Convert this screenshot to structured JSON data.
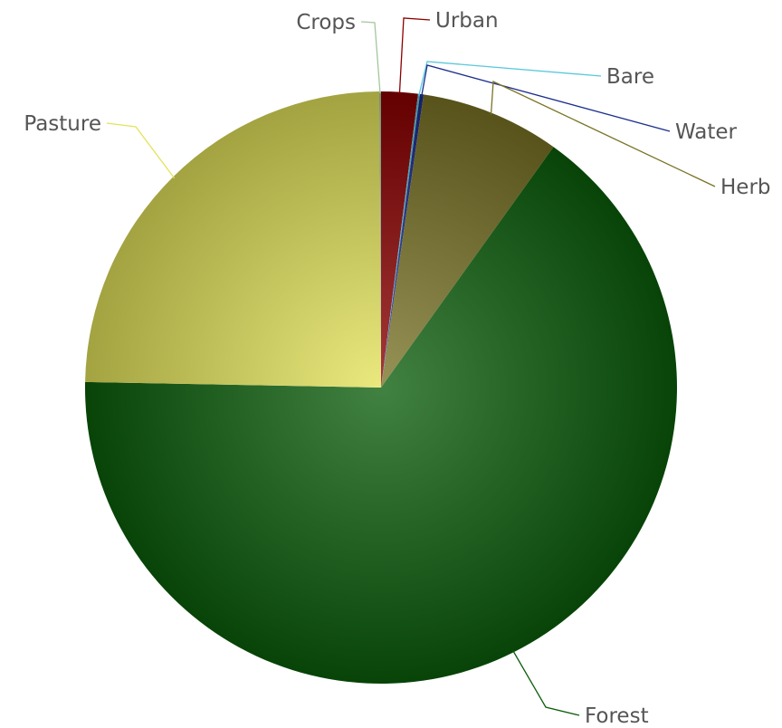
{
  "chart_data": {
    "type": "pie",
    "title": "",
    "slices": [
      {
        "label": "Urban",
        "value": 2.0,
        "color": "#8b0000"
      },
      {
        "label": "Bare",
        "value": 0.1,
        "color": "#5bc8dc"
      },
      {
        "label": "Water",
        "value": 0.2,
        "color": "#1a2d8c"
      },
      {
        "label": "Herb",
        "value": 7.6,
        "color": "#7a7326"
      },
      {
        "label": "Forest",
        "value": 65.4,
        "color": "#0b5e0b"
      },
      {
        "label": "Pasture",
        "value": 24.6,
        "color": "#e3e35a"
      },
      {
        "label": "Crops",
        "value": 0.1,
        "color": "#a3c79a"
      }
    ]
  }
}
